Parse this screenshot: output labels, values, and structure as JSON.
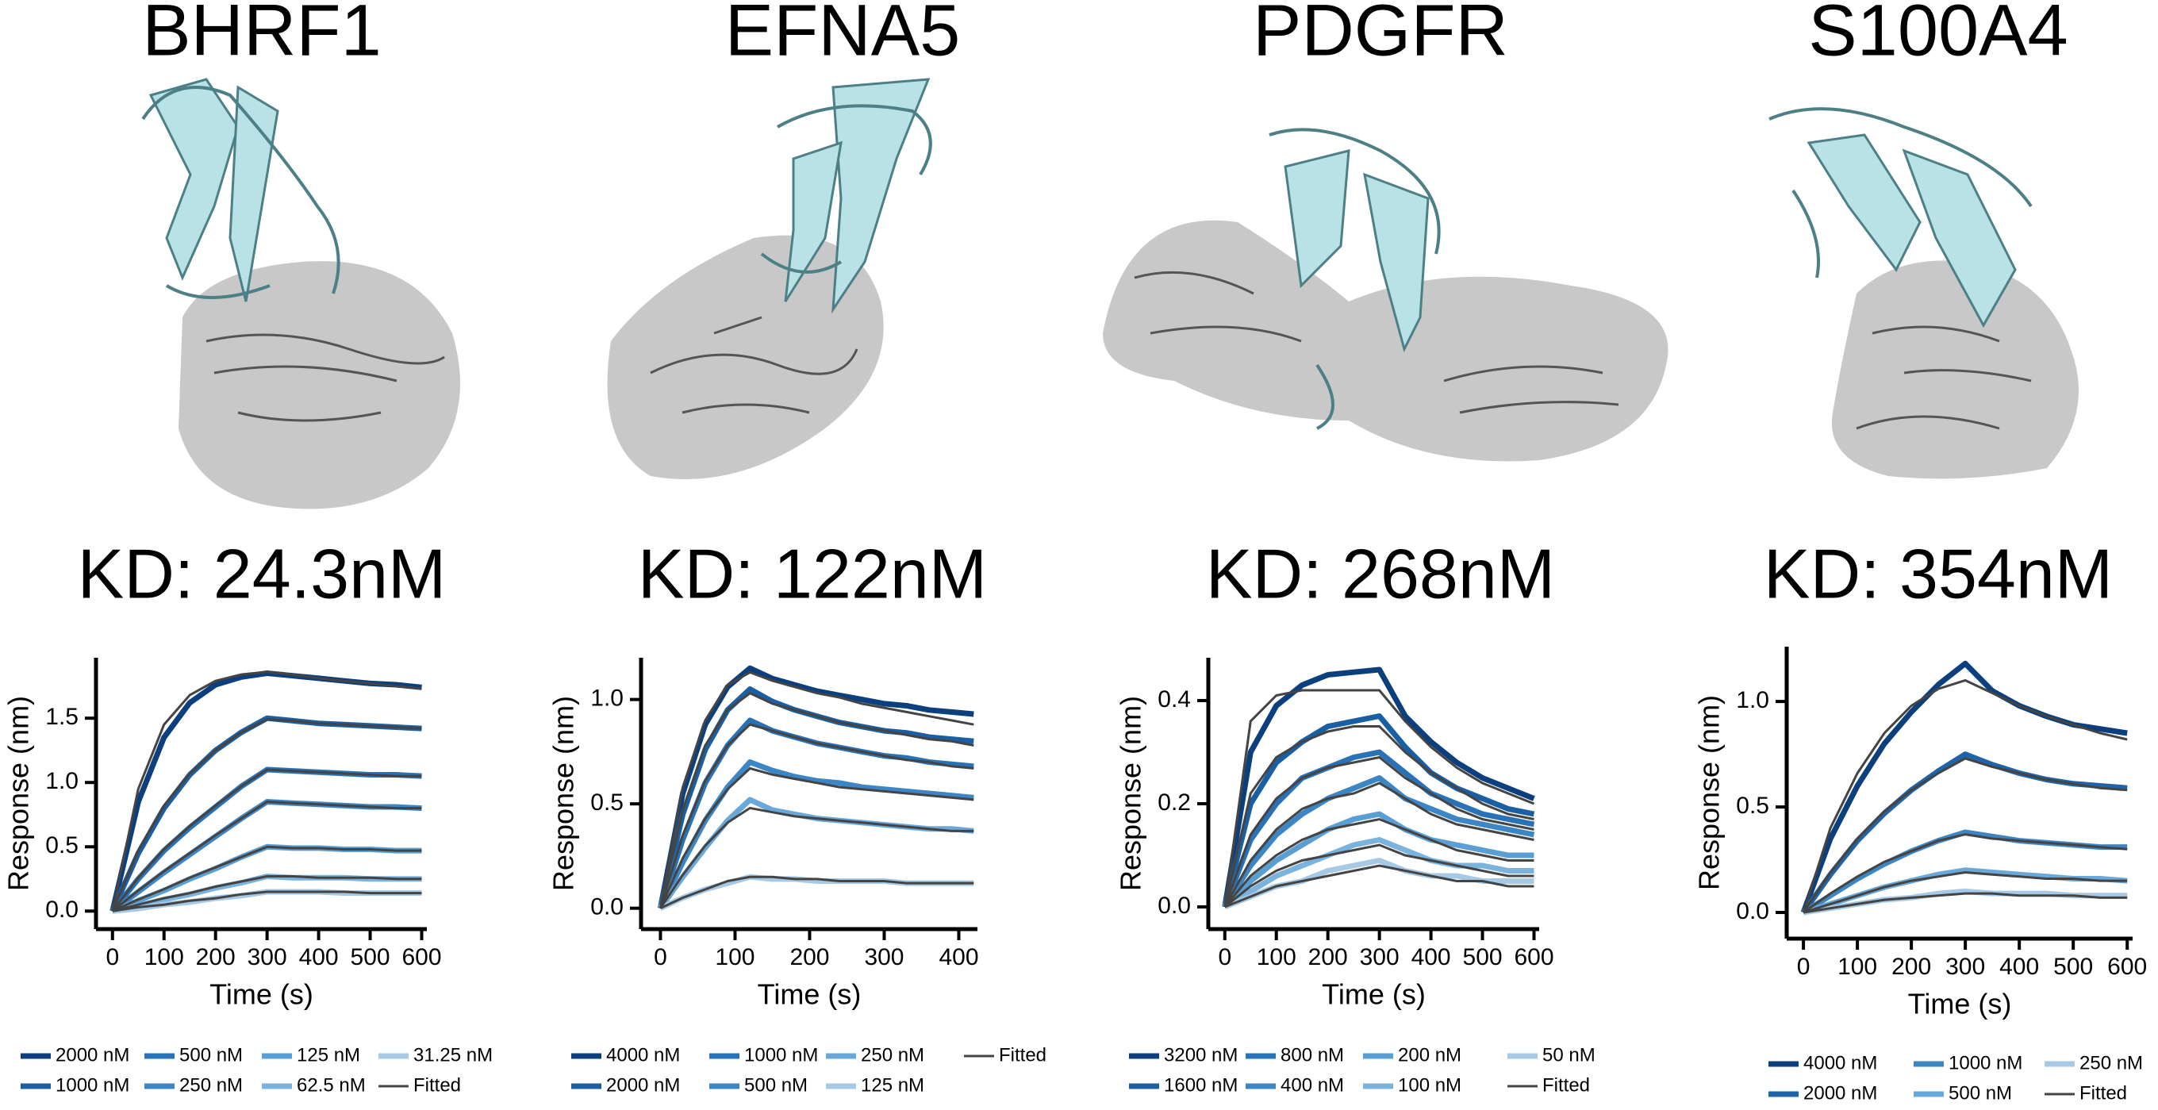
{
  "chart_data": [
    {
      "type": "line",
      "title": "BHRF1",
      "subtitle": "KD: 24.3nM",
      "xlabel": "Time (s)",
      "ylabel": "Response (nm)",
      "x": [
        0,
        50,
        100,
        150,
        200,
        250,
        300,
        350,
        400,
        450,
        500,
        550,
        600
      ],
      "xlim": [
        -32,
        610
      ],
      "xticks": [
        0,
        100,
        200,
        300,
        400,
        500,
        600
      ],
      "ylim": [
        -0.14,
        1.97
      ],
      "yticks": [
        {
          "value": 0,
          "label": "0.0"
        },
        0.5,
        {
          "value": 1,
          "label": "1.0"
        },
        1.5
      ],
      "series": [
        {
          "name": "2000 nM",
          "color": "#0b3f7e",
          "values": [
            0,
            0.85,
            1.35,
            1.62,
            1.76,
            1.82,
            1.85,
            1.83,
            1.81,
            1.79,
            1.77,
            1.76,
            1.74
          ]
        },
        {
          "name": "1000 nM",
          "color": "#1a5fa3",
          "values": [
            0,
            0.45,
            0.8,
            1.06,
            1.25,
            1.39,
            1.5,
            1.48,
            1.46,
            1.45,
            1.44,
            1.43,
            1.42
          ]
        },
        {
          "name": "500 nM",
          "color": "#2a72b8",
          "values": [
            0,
            0.25,
            0.47,
            0.65,
            0.81,
            0.97,
            1.1,
            1.09,
            1.08,
            1.07,
            1.06,
            1.06,
            1.05
          ]
        },
        {
          "name": "250 nM",
          "color": "#3d86c6",
          "values": [
            0,
            0.15,
            0.3,
            0.44,
            0.58,
            0.72,
            0.85,
            0.84,
            0.83,
            0.82,
            0.81,
            0.81,
            0.8
          ]
        },
        {
          "name": "125 nM",
          "color": "#5a9fd4",
          "values": [
            0,
            0.08,
            0.16,
            0.25,
            0.33,
            0.42,
            0.5,
            0.49,
            0.49,
            0.48,
            0.48,
            0.47,
            0.47
          ]
        },
        {
          "name": "62.5 nM",
          "color": "#7ab3dd",
          "values": [
            0,
            0.04,
            0.09,
            0.13,
            0.18,
            0.22,
            0.27,
            0.26,
            0.26,
            0.26,
            0.25,
            0.25,
            0.25
          ]
        },
        {
          "name": "31.25 nM",
          "color": "#a6c9e6",
          "values": [
            0,
            0.02,
            0.05,
            0.07,
            0.1,
            0.12,
            0.15,
            0.15,
            0.15,
            0.14,
            0.14,
            0.14,
            0.14
          ]
        }
      ],
      "fitted": {
        "name": "Fitted",
        "color": "#444444",
        "curves": [
          [
            0,
            0.95,
            1.45,
            1.68,
            1.79,
            1.84,
            1.86,
            1.84,
            1.81,
            1.79,
            1.77,
            1.75,
            1.73
          ],
          [
            0,
            0.47,
            0.82,
            1.07,
            1.25,
            1.39,
            1.49,
            1.48,
            1.46,
            1.45,
            1.44,
            1.43,
            1.42
          ],
          [
            0,
            0.26,
            0.48,
            0.66,
            0.82,
            0.97,
            1.1,
            1.09,
            1.08,
            1.07,
            1.06,
            1.05,
            1.05
          ],
          [
            0,
            0.16,
            0.31,
            0.45,
            0.59,
            0.72,
            0.85,
            0.84,
            0.83,
            0.82,
            0.81,
            0.8,
            0.8
          ],
          [
            0,
            0.09,
            0.17,
            0.26,
            0.34,
            0.42,
            0.5,
            0.49,
            0.49,
            0.48,
            0.48,
            0.47,
            0.47
          ],
          [
            0,
            0.05,
            0.1,
            0.14,
            0.19,
            0.23,
            0.27,
            0.27,
            0.26,
            0.26,
            0.26,
            0.25,
            0.25
          ],
          [
            0,
            0.03,
            0.05,
            0.08,
            0.1,
            0.13,
            0.15,
            0.15,
            0.15,
            0.15,
            0.14,
            0.14,
            0.14
          ]
        ]
      }
    },
    {
      "type": "line",
      "title": "EFNA5",
      "subtitle": "KD: 122nM",
      "xlabel": "Time (s)",
      "ylabel": "Response (nm)",
      "x": [
        0,
        30,
        60,
        90,
        120,
        150,
        180,
        210,
        240,
        270,
        300,
        330,
        360,
        390,
        420
      ],
      "xlim": [
        -26,
        425
      ],
      "xticks": [
        0,
        100,
        200,
        300,
        400
      ],
      "ylim": [
        -0.1,
        1.2
      ],
      "yticks": [
        {
          "value": 0,
          "label": "0.0"
        },
        0.5,
        {
          "value": 1,
          "label": "1.0"
        }
      ],
      "series": [
        {
          "name": "4000 nM",
          "color": "#0b3f7e",
          "values": [
            0,
            0.55,
            0.88,
            1.06,
            1.15,
            1.1,
            1.07,
            1.04,
            1.02,
            1.0,
            0.98,
            0.97,
            0.95,
            0.94,
            0.93
          ]
        },
        {
          "name": "2000 nM",
          "color": "#1a5fa3",
          "values": [
            0,
            0.45,
            0.76,
            0.95,
            1.05,
            0.99,
            0.95,
            0.92,
            0.89,
            0.87,
            0.85,
            0.84,
            0.82,
            0.81,
            0.8
          ]
        },
        {
          "name": "1000 nM",
          "color": "#2a72b8",
          "values": [
            0,
            0.33,
            0.6,
            0.78,
            0.9,
            0.85,
            0.82,
            0.79,
            0.77,
            0.75,
            0.73,
            0.72,
            0.7,
            0.69,
            0.68
          ]
        },
        {
          "name": "500 nM",
          "color": "#3d86c6",
          "values": [
            0,
            0.22,
            0.42,
            0.58,
            0.7,
            0.66,
            0.63,
            0.61,
            0.6,
            0.58,
            0.57,
            0.56,
            0.55,
            0.54,
            0.53
          ]
        },
        {
          "name": "250 nM",
          "color": "#6aa8d9",
          "values": [
            0,
            0.15,
            0.29,
            0.42,
            0.52,
            0.47,
            0.45,
            0.43,
            0.42,
            0.41,
            0.4,
            0.39,
            0.38,
            0.38,
            0.37
          ]
        },
        {
          "name": "125 nM",
          "color": "#a6c9e6",
          "values": [
            0,
            0.05,
            0.09,
            0.12,
            0.15,
            0.14,
            0.14,
            0.13,
            0.13,
            0.13,
            0.13,
            0.12,
            0.12,
            0.12,
            0.12
          ]
        }
      ],
      "fitted": {
        "name": "Fitted",
        "color": "#444444",
        "curves": [
          [
            0,
            0.58,
            0.9,
            1.07,
            1.13,
            1.09,
            1.06,
            1.03,
            1.01,
            0.98,
            0.96,
            0.94,
            0.92,
            0.9,
            0.88
          ],
          [
            0,
            0.47,
            0.78,
            0.95,
            1.03,
            0.98,
            0.95,
            0.92,
            0.89,
            0.87,
            0.85,
            0.83,
            0.81,
            0.8,
            0.78
          ],
          [
            0,
            0.35,
            0.61,
            0.78,
            0.88,
            0.85,
            0.82,
            0.79,
            0.77,
            0.75,
            0.73,
            0.71,
            0.7,
            0.68,
            0.67
          ],
          [
            0,
            0.24,
            0.43,
            0.57,
            0.67,
            0.64,
            0.62,
            0.6,
            0.58,
            0.57,
            0.56,
            0.55,
            0.54,
            0.53,
            0.52
          ],
          [
            0,
            0.16,
            0.3,
            0.41,
            0.48,
            0.46,
            0.44,
            0.43,
            0.42,
            0.41,
            0.4,
            0.39,
            0.38,
            0.37,
            0.37
          ],
          [
            0,
            0.05,
            0.09,
            0.13,
            0.15,
            0.15,
            0.14,
            0.14,
            0.13,
            0.13,
            0.13,
            0.12,
            0.12,
            0.12,
            0.12
          ]
        ]
      }
    },
    {
      "type": "line",
      "title": "PDGFR",
      "subtitle": "KD: 268nM",
      "xlabel": "Time (s)",
      "ylabel": "Response (nm)",
      "x": [
        0,
        50,
        100,
        150,
        200,
        250,
        300,
        350,
        400,
        450,
        500,
        550,
        600
      ],
      "xlim": [
        -32,
        610
      ],
      "xticks": [
        0,
        100,
        200,
        300,
        400,
        500,
        600
      ],
      "ylim": [
        -0.043,
        0.483
      ],
      "yticks": [
        {
          "value": 0,
          "label": "0.0"
        },
        0.2,
        0.4
      ],
      "series": [
        {
          "name": "3200 nM",
          "color": "#0b3f7e",
          "values": [
            0,
            0.3,
            0.39,
            0.43,
            0.45,
            0.455,
            0.46,
            0.37,
            0.32,
            0.28,
            0.25,
            0.23,
            0.21
          ]
        },
        {
          "name": "1600 nM",
          "color": "#1a5fa3",
          "values": [
            0,
            0.2,
            0.28,
            0.32,
            0.35,
            0.36,
            0.37,
            0.31,
            0.26,
            0.23,
            0.21,
            0.19,
            0.18
          ]
        },
        {
          "name": "800 nM",
          "color": "#2a72b8",
          "values": [
            0,
            0.13,
            0.2,
            0.25,
            0.27,
            0.29,
            0.3,
            0.26,
            0.22,
            0.2,
            0.18,
            0.17,
            0.16
          ]
        },
        {
          "name": "400 nM",
          "color": "#3d86c6",
          "values": [
            0,
            0.08,
            0.14,
            0.18,
            0.21,
            0.23,
            0.25,
            0.21,
            0.19,
            0.17,
            0.16,
            0.15,
            0.14
          ]
        },
        {
          "name": "200 nM",
          "color": "#5a9fd4",
          "values": [
            0,
            0.05,
            0.09,
            0.12,
            0.15,
            0.17,
            0.18,
            0.15,
            0.13,
            0.12,
            0.11,
            0.1,
            0.1
          ]
        },
        {
          "name": "100 nM",
          "color": "#7ab3dd",
          "values": [
            0,
            0.03,
            0.06,
            0.08,
            0.1,
            0.12,
            0.13,
            0.11,
            0.09,
            0.08,
            0.08,
            0.07,
            0.07
          ]
        },
        {
          "name": "50 nM",
          "color": "#a6c9e6",
          "values": [
            0,
            0.02,
            0.04,
            0.05,
            0.07,
            0.08,
            0.09,
            0.07,
            0.06,
            0.06,
            0.05,
            0.05,
            0.05
          ]
        }
      ],
      "fitted": {
        "name": "Fitted",
        "color": "#444444",
        "curves": [
          [
            0,
            0.36,
            0.41,
            0.42,
            0.42,
            0.42,
            0.42,
            0.36,
            0.31,
            0.27,
            0.24,
            0.22,
            0.2
          ],
          [
            0,
            0.22,
            0.29,
            0.32,
            0.34,
            0.35,
            0.35,
            0.3,
            0.26,
            0.23,
            0.2,
            0.18,
            0.17
          ],
          [
            0,
            0.14,
            0.21,
            0.25,
            0.27,
            0.28,
            0.29,
            0.25,
            0.22,
            0.19,
            0.17,
            0.16,
            0.15
          ],
          [
            0,
            0.09,
            0.15,
            0.19,
            0.21,
            0.22,
            0.24,
            0.21,
            0.18,
            0.16,
            0.15,
            0.14,
            0.13
          ],
          [
            0,
            0.06,
            0.1,
            0.13,
            0.15,
            0.16,
            0.17,
            0.15,
            0.13,
            0.11,
            0.1,
            0.09,
            0.09
          ],
          [
            0,
            0.04,
            0.07,
            0.09,
            0.1,
            0.11,
            0.12,
            0.1,
            0.09,
            0.08,
            0.07,
            0.06,
            0.06
          ],
          [
            0,
            0.02,
            0.04,
            0.05,
            0.06,
            0.07,
            0.08,
            0.07,
            0.06,
            0.05,
            0.05,
            0.04,
            0.04
          ]
        ]
      }
    },
    {
      "type": "line",
      "title": "S100A4",
      "subtitle": "KD: 354nM",
      "xlabel": "Time (s)",
      "ylabel": "Response (nm)",
      "x": [
        0,
        50,
        100,
        150,
        200,
        250,
        300,
        350,
        400,
        450,
        500,
        550,
        600
      ],
      "xlim": [
        -31,
        610
      ],
      "xticks": [
        0,
        100,
        200,
        300,
        400,
        500,
        600
      ],
      "ylim": [
        -0.124,
        1.26
      ],
      "yticks": [
        {
          "value": 0,
          "label": "0.0"
        },
        0.5,
        {
          "value": 1,
          "label": "1.0"
        }
      ],
      "series": [
        {
          "name": "4000 nM",
          "color": "#0b3f7e",
          "values": [
            0,
            0.35,
            0.6,
            0.8,
            0.95,
            1.08,
            1.18,
            1.05,
            0.98,
            0.93,
            0.89,
            0.87,
            0.85
          ]
        },
        {
          "name": "2000 nM",
          "color": "#1f64a8",
          "values": [
            0,
            0.18,
            0.34,
            0.47,
            0.58,
            0.67,
            0.75,
            0.7,
            0.66,
            0.63,
            0.61,
            0.6,
            0.59
          ]
        },
        {
          "name": "1000 nM",
          "color": "#3d86c6",
          "values": [
            0,
            0.08,
            0.16,
            0.23,
            0.29,
            0.34,
            0.38,
            0.36,
            0.34,
            0.33,
            0.32,
            0.31,
            0.31
          ]
        },
        {
          "name": "500 nM",
          "color": "#6aa8d9",
          "values": [
            0,
            0.04,
            0.08,
            0.12,
            0.15,
            0.18,
            0.2,
            0.19,
            0.18,
            0.17,
            0.16,
            0.16,
            0.15
          ]
        },
        {
          "name": "250 nM",
          "color": "#a6c9e6",
          "values": [
            0,
            0.02,
            0.04,
            0.06,
            0.07,
            0.09,
            0.1,
            0.09,
            0.09,
            0.09,
            0.08,
            0.08,
            0.08
          ]
        }
      ],
      "fitted": {
        "name": "Fitted",
        "color": "#444444",
        "curves": [
          [
            0,
            0.4,
            0.66,
            0.85,
            0.98,
            1.06,
            1.1,
            1.04,
            0.98,
            0.93,
            0.89,
            0.85,
            0.82
          ],
          [
            0,
            0.19,
            0.35,
            0.48,
            0.58,
            0.66,
            0.73,
            0.69,
            0.66,
            0.63,
            0.61,
            0.59,
            0.58
          ],
          [
            0,
            0.09,
            0.17,
            0.24,
            0.29,
            0.34,
            0.37,
            0.35,
            0.34,
            0.33,
            0.32,
            0.31,
            0.3
          ],
          [
            0,
            0.04,
            0.08,
            0.12,
            0.15,
            0.17,
            0.19,
            0.18,
            0.17,
            0.16,
            0.16,
            0.15,
            0.15
          ],
          [
            0,
            0.02,
            0.04,
            0.06,
            0.07,
            0.08,
            0.09,
            0.09,
            0.08,
            0.08,
            0.08,
            0.07,
            0.07
          ]
        ]
      }
    }
  ]
}
